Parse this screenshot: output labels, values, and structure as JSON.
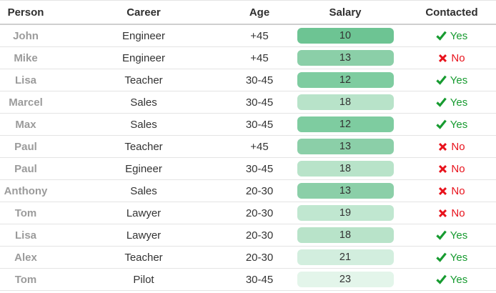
{
  "table": {
    "headers": [
      "Person",
      "Career",
      "Age",
      "Salary",
      "Contacted"
    ],
    "rows": [
      {
        "person": "John",
        "career": "Engineer",
        "age": "+45",
        "salary": "10",
        "salary_color": "#6dc493",
        "contacted_label": "Yes",
        "contacted_icon": "check-icon",
        "contacted_state": "yes"
      },
      {
        "person": "Mike",
        "career": "Engineer",
        "age": "+45",
        "salary": "13",
        "salary_color": "#8bcfa8",
        "contacted_label": "No",
        "contacted_icon": "cross-icon",
        "contacted_state": "no"
      },
      {
        "person": "Lisa",
        "career": "Teacher",
        "age": "30-45",
        "salary": "12",
        "salary_color": "#7ecca0",
        "contacted_label": "Yes",
        "contacted_icon": "check-icon",
        "contacted_state": "yes"
      },
      {
        "person": "Marcel",
        "career": "Sales",
        "age": "30-45",
        "salary": "18",
        "salary_color": "#b8e3c9",
        "contacted_label": "Yes",
        "contacted_icon": "check-icon",
        "contacted_state": "yes"
      },
      {
        "person": "Max",
        "career": "Sales",
        "age": "30-45",
        "salary": "12",
        "salary_color": "#7ecca0",
        "contacted_label": "Yes",
        "contacted_icon": "check-icon",
        "contacted_state": "yes"
      },
      {
        "person": "Paul",
        "career": "Teacher",
        "age": "+45",
        "salary": "13",
        "salary_color": "#8bcfa8",
        "contacted_label": "No",
        "contacted_icon": "cross-icon",
        "contacted_state": "no"
      },
      {
        "person": "Paul",
        "career": "Egineer",
        "age": "30-45",
        "salary": "18",
        "salary_color": "#b8e3c9",
        "contacted_label": "No",
        "contacted_icon": "cross-icon",
        "contacted_state": "no"
      },
      {
        "person": "Anthony",
        "career": "Sales",
        "age": "20-30",
        "salary": "13",
        "salary_color": "#8bcfa8",
        "contacted_label": "No",
        "contacted_icon": "cross-icon",
        "contacted_state": "no"
      },
      {
        "person": "Tom",
        "career": "Lawyer",
        "age": "20-30",
        "salary": "19",
        "salary_color": "#c0e7d0",
        "contacted_label": "No",
        "contacted_icon": "cross-icon",
        "contacted_state": "no"
      },
      {
        "person": "Lisa",
        "career": "Lawyer",
        "age": "20-30",
        "salary": "18",
        "salary_color": "#b8e3c9",
        "contacted_label": "Yes",
        "contacted_icon": "check-icon",
        "contacted_state": "yes"
      },
      {
        "person": "Alex",
        "career": "Teacher",
        "age": "20-30",
        "salary": "21",
        "salary_color": "#d2eede",
        "contacted_label": "Yes",
        "contacted_icon": "check-icon",
        "contacted_state": "yes"
      },
      {
        "person": "Tom",
        "career": "Pilot",
        "age": "30-45",
        "salary": "23",
        "salary_color": "#e3f5ea",
        "contacted_label": "Yes",
        "contacted_icon": "check-icon",
        "contacted_state": "yes"
      }
    ]
  },
  "colors": {
    "contacted_yes": "#179b30",
    "contacted_no": "#e8121c",
    "name_gray": "#9b9b9b",
    "header_text": "#2f2f2f",
    "row_border": "#e4e4e4"
  }
}
